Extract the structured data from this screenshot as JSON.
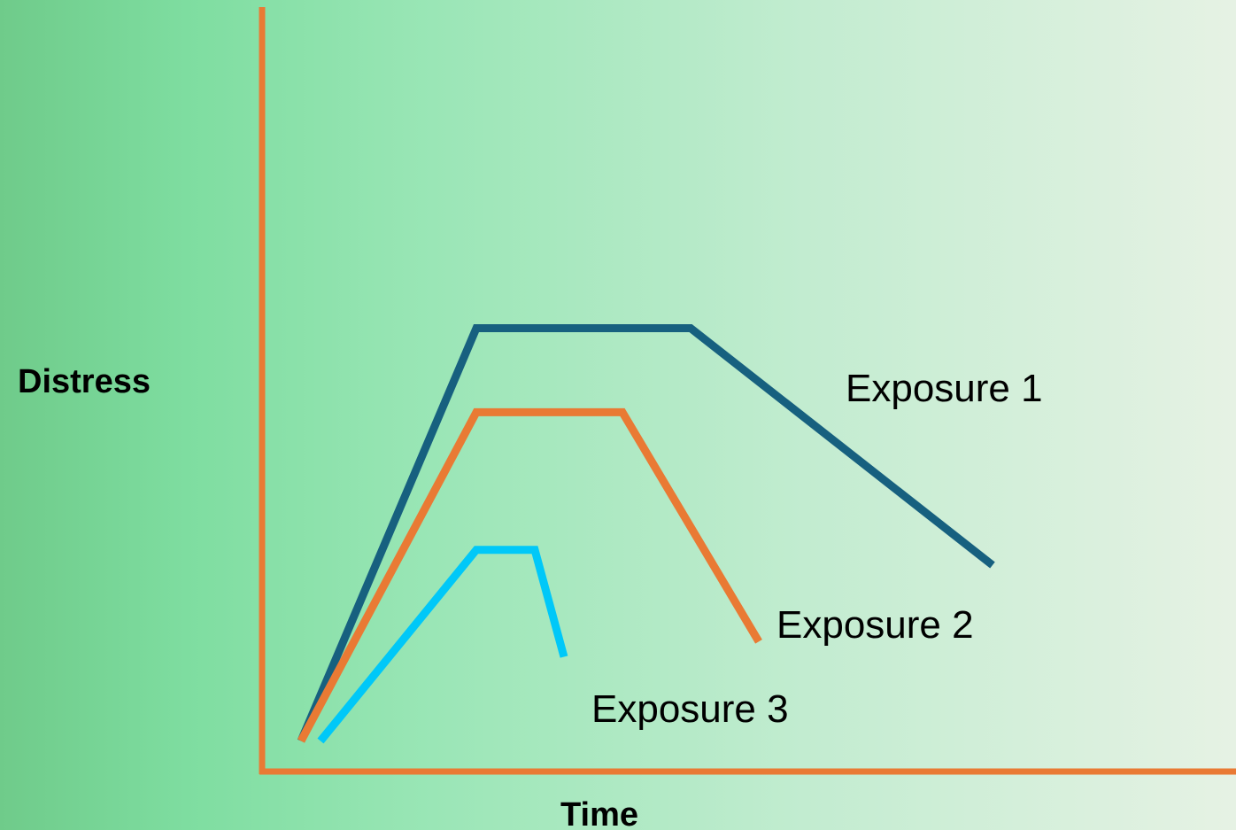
{
  "chart_data": {
    "type": "line",
    "xlabel": "Time",
    "ylabel": "Distress",
    "axis_color": "#e97a34",
    "grid": false,
    "xlim": [
      0,
      100
    ],
    "ylim": [
      0,
      100
    ],
    "series": [
      {
        "name": "Exposure 1",
        "color": "#17607f",
        "points": [
          [
            4,
            4
          ],
          [
            22,
            58
          ],
          [
            44,
            58
          ],
          [
            75,
            27
          ]
        ]
      },
      {
        "name": "Exposure 2",
        "color": "#e97a34",
        "points": [
          [
            4,
            4
          ],
          [
            22,
            47
          ],
          [
            37,
            47
          ],
          [
            51,
            17
          ]
        ]
      },
      {
        "name": "Exposure 3",
        "color": "#00c8f8",
        "points": [
          [
            6,
            4
          ],
          [
            22,
            29
          ],
          [
            28,
            29
          ],
          [
            31,
            15
          ]
        ]
      }
    ]
  }
}
